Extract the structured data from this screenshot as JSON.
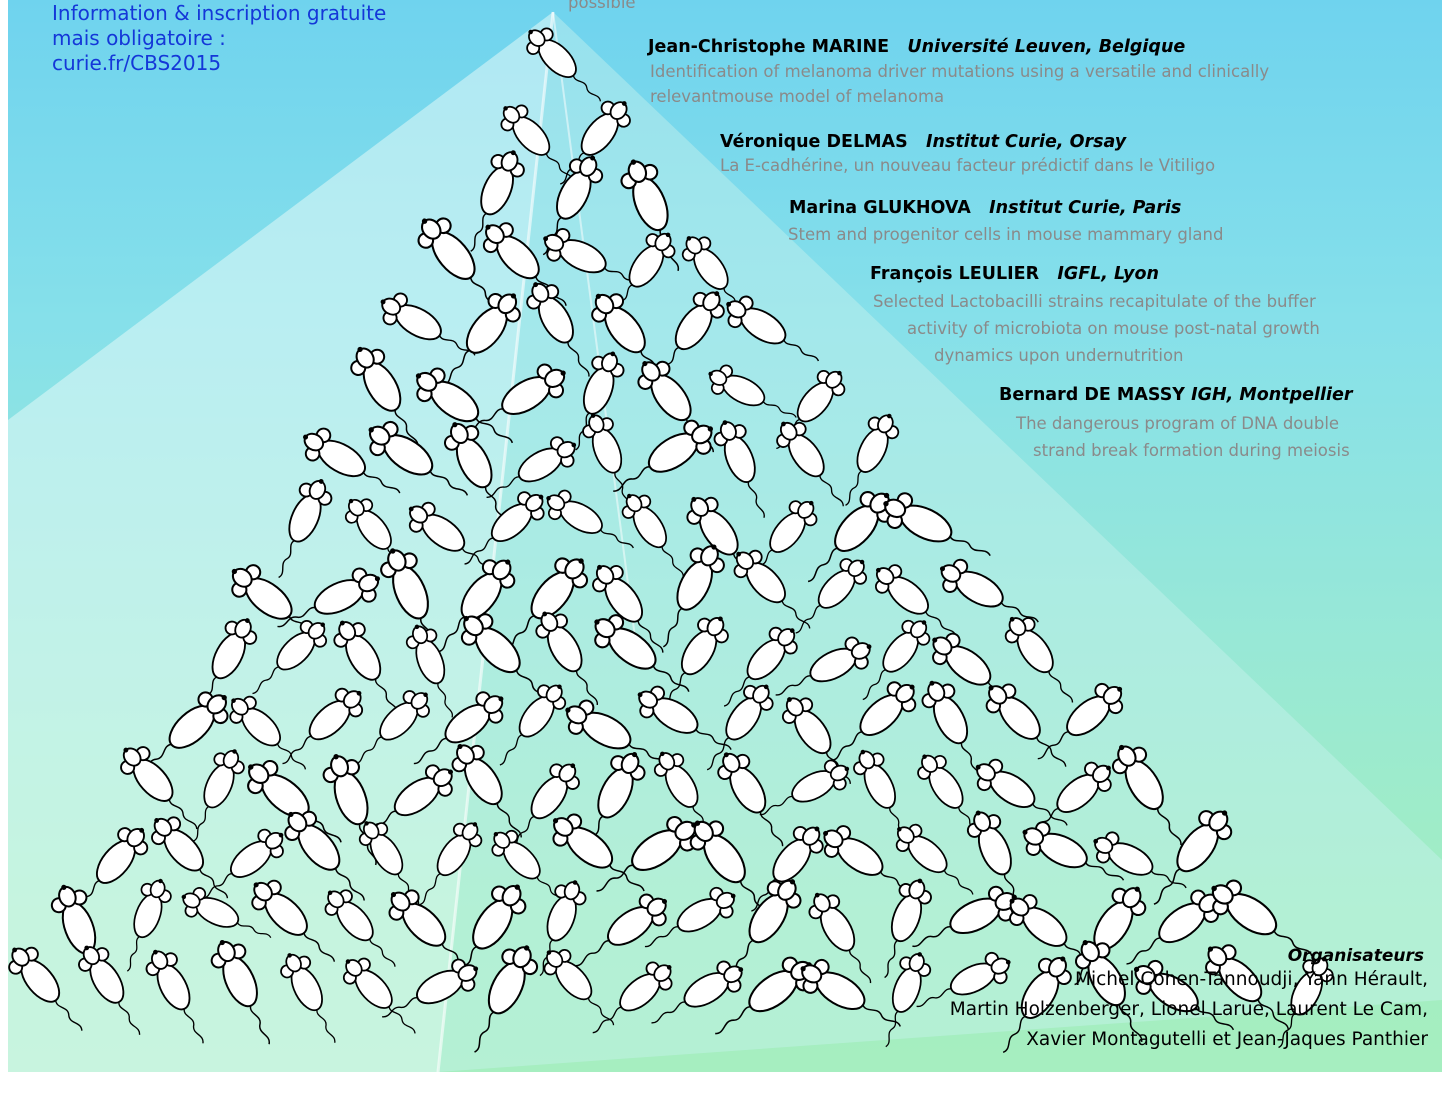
{
  "info": {
    "line1": "Information & inscription gratuite",
    "line2": "mais obligatoire :",
    "line3": "curie.fr/CBS2015"
  },
  "top_fragment": "possible",
  "speakers": [
    {
      "name": "Jean-Christophe MARINE",
      "affiliation": "Université Leuven, Belgique",
      "talk": [
        "Identification of melanoma driver mutations using a versatile and clinically",
        "relevantmouse model of melanoma"
      ]
    },
    {
      "name": "Véronique DELMAS",
      "affiliation": "Institut Curie, Orsay",
      "talk": [
        "La E-cadhérine, un nouveau facteur prédictif dans le Vitiligo"
      ]
    },
    {
      "name": "Marina GLUKHOVA",
      "affiliation": "Institut Curie, Paris",
      "talk": [
        "Stem and progenitor cells in mouse mammary gland"
      ]
    },
    {
      "name": "François LEULIER",
      "affiliation": "IGFL, Lyon",
      "talk": [
        "Selected Lactobacilli strains recapitulate of the buffer",
        "activity of microbiota on mouse post-natal growth",
        "dynamics upon undernutrition"
      ]
    },
    {
      "name": "Bernard DE MASSY",
      "affiliation": "IGH, Montpellier",
      "talk": [
        "The dangerous program of DNA double",
        "strand break formation during meiosis"
      ]
    }
  ],
  "organisers": {
    "title": "Organisateurs",
    "lines": [
      "Michel Cohen-Tannoudji, Yann Hérault,",
      "Martin Holzenberger, Lionel Larue, Laurent Le Cam,",
      "Xavier Montagutelli et Jean-Jaques Panthier"
    ]
  },
  "colors": {
    "info_text": "#1437d8",
    "talk_text": "#8a8a8a",
    "pyramid_light": "#e4faf8",
    "pyramid_shade": "#c4f0ec"
  },
  "illustration": {
    "description_icon": "mouse-pyramid-illustration"
  }
}
